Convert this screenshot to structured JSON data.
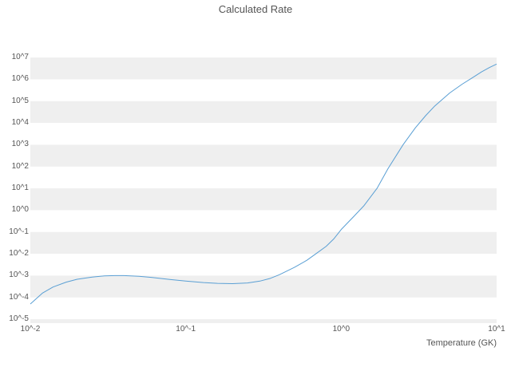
{
  "chart_data": {
    "type": "line",
    "title": "Calculated Rate",
    "xlabel": "Temperature (GK)",
    "ylabel": "",
    "x_scale": "log",
    "y_scale": "log",
    "xlim": [
      0.01,
      10
    ],
    "ylim": [
      1e-05,
      10000000.0
    ],
    "x_tick_labels": [
      "10^-2",
      "10^-1",
      "10^0",
      "10^1"
    ],
    "x_tick_values": [
      0.01,
      0.1,
      1,
      10
    ],
    "y_tick_labels": [
      "10^7",
      "10^6",
      "10^5",
      "10^4",
      "10^3",
      "10^2",
      "10^1",
      "10^0",
      "10^-1",
      "10^-2",
      "10^-3",
      "10^-4",
      "10^-5"
    ],
    "y_tick_values": [
      10000000.0,
      1000000.0,
      100000.0,
      10000.0,
      1000.0,
      100.0,
      10.0,
      1,
      0.1,
      0.01,
      0.001,
      0.0001,
      1e-05
    ],
    "grid": "horizontal-decade-bands",
    "legend": "none",
    "line_color": "#5a9fd4",
    "band_color": "#efefef",
    "series": [
      {
        "name": "calculated-rate",
        "x": [
          0.01,
          0.012,
          0.014,
          0.017,
          0.02,
          0.025,
          0.03,
          0.035,
          0.04,
          0.05,
          0.06,
          0.08,
          0.1,
          0.13,
          0.16,
          0.2,
          0.25,
          0.3,
          0.35,
          0.4,
          0.5,
          0.6,
          0.7,
          0.8,
          0.9,
          1.0,
          1.2,
          1.4,
          1.7,
          2.0,
          2.5,
          3.0,
          3.5,
          4.0,
          5.0,
          6.0,
          7.0,
          8.0,
          9.0,
          10.0
        ],
        "y": [
          5e-05,
          0.00016,
          0.0003,
          0.0005,
          0.00068,
          0.00086,
          0.00097,
          0.001,
          0.001,
          0.00093,
          0.00083,
          0.00066,
          0.00056,
          0.00048,
          0.00044,
          0.00043,
          0.00046,
          0.00056,
          0.00075,
          0.0011,
          0.0024,
          0.005,
          0.011,
          0.022,
          0.05,
          0.13,
          0.5,
          1.6,
          10,
          80,
          1000,
          6000,
          22000.0,
          60000.0,
          240000.0,
          600000.0,
          1200000.0,
          2200000.0,
          3500000.0,
          5000000.0
        ]
      }
    ]
  }
}
